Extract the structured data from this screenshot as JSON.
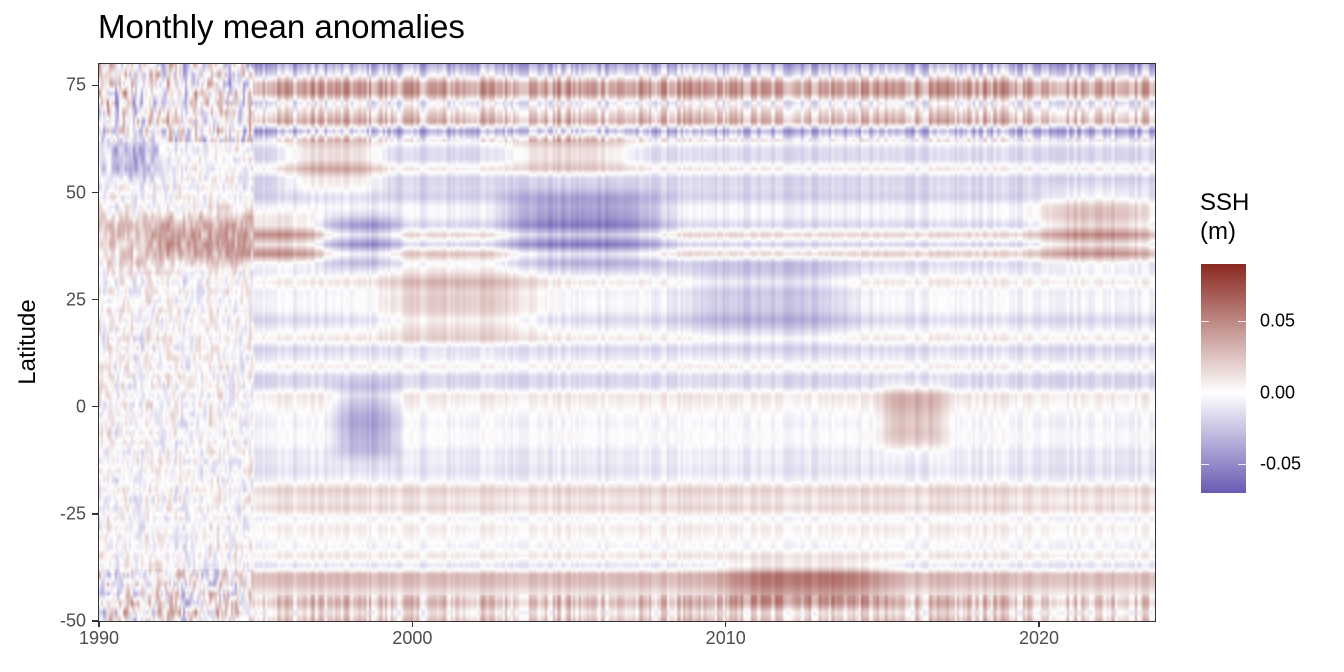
{
  "chart_data": {
    "type": "heatmap",
    "title": "Monthly mean anomalies",
    "xlabel": "",
    "ylabel": "Latitude",
    "xlim": [
      1990,
      2023.7
    ],
    "ylim": [
      -50,
      80
    ],
    "x_ticks": [
      1990,
      2000,
      2010,
      2020
    ],
    "x_tick_labels": [
      "1990",
      "2000",
      "2010",
      "2020"
    ],
    "y_ticks": [
      -50,
      -25,
      0,
      25,
      50,
      75
    ],
    "y_tick_labels": [
      "-50",
      "-25",
      "0",
      "25",
      "50",
      "75"
    ],
    "grid": false,
    "legend": {
      "title": "SSH\n(m)",
      "placement": "right",
      "range": [
        -0.07,
        0.09
      ],
      "ticks": [
        -0.05,
        0.0,
        0.05
      ],
      "tick_labels": [
        "-0.05",
        "0.00",
        "0.05"
      ],
      "color_low": "#6a5bb3",
      "color_mid": "#ffffff",
      "color_high": "#8b2a22"
    },
    "anomaly_features": [
      {
        "x": [
          1990,
          1997.5
        ],
        "y": [
          33,
          45
        ],
        "value": 0.035
      },
      {
        "x": [
          1996,
          1999
        ],
        "y": [
          50,
          65
        ],
        "value": 0.03
      },
      {
        "x": [
          1997,
          1999.5
        ],
        "y": [
          33,
          45
        ],
        "value": -0.035
      },
      {
        "x": [
          1999,
          2004
        ],
        "y": [
          15,
          35
        ],
        "value": 0.025
      },
      {
        "x": [
          2003,
          2008
        ],
        "y": [
          33,
          50
        ],
        "value": -0.04
      },
      {
        "x": [
          2003,
          2007
        ],
        "y": [
          55,
          65
        ],
        "value": 0.03
      },
      {
        "x": [
          2008.5,
          2014
        ],
        "y": [
          15,
          35
        ],
        "value": -0.02
      },
      {
        "x": [
          2020,
          2023.7
        ],
        "y": [
          33,
          50
        ],
        "value": 0.035
      },
      {
        "x": [
          2010,
          2015
        ],
        "y": [
          -47,
          -36
        ],
        "value": 0.03
      },
      {
        "x": [
          1990,
          1992
        ],
        "y": [
          52,
          64
        ],
        "value": -0.03
      },
      {
        "x": [
          2015,
          2017
        ],
        "y": [
          -10,
          5
        ],
        "value": 0.03
      },
      {
        "x": [
          1997.5,
          1999.5
        ],
        "y": [
          -12,
          5
        ],
        "value": -0.035
      }
    ]
  }
}
